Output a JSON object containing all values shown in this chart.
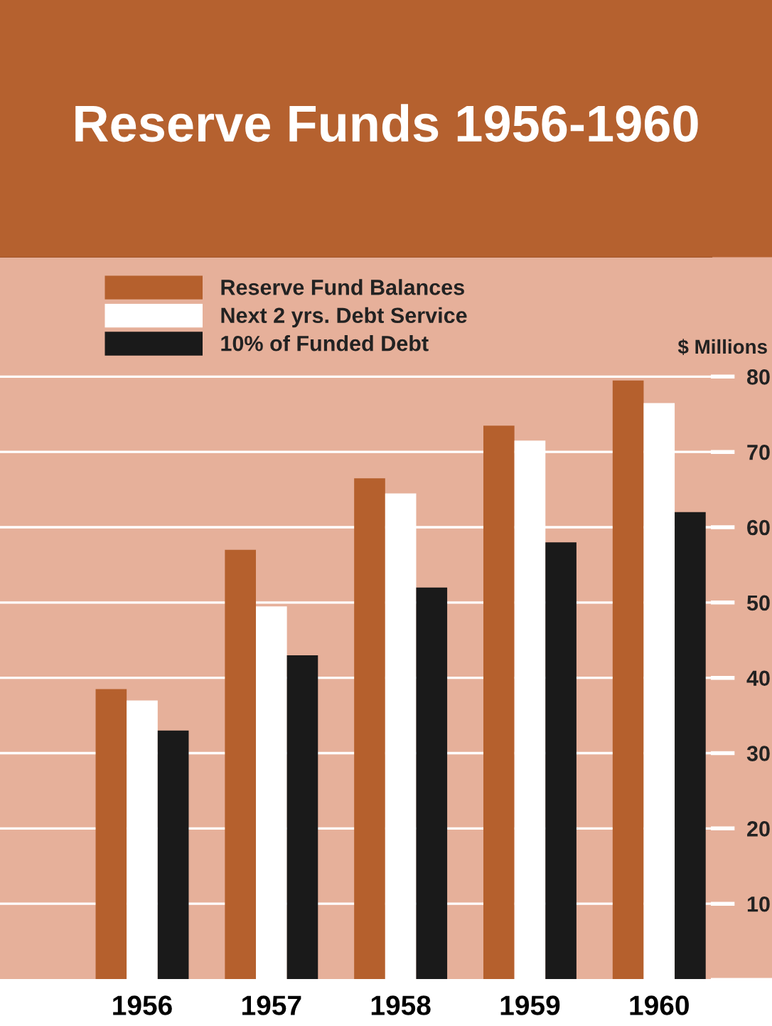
{
  "chart_data": {
    "type": "bar",
    "title": "Reserve Funds 1956-1960",
    "ylabel": "$ Millions",
    "categories": [
      "1956",
      "1957",
      "1958",
      "1959",
      "1960"
    ],
    "series": [
      {
        "name": "Reserve Fund Balances",
        "color": "#b5602d",
        "values": [
          38.5,
          57,
          66.5,
          73.5,
          79.5
        ]
      },
      {
        "name": "Next 2 yrs. Debt Service",
        "color": "#ffffff",
        "values": [
          37,
          49.5,
          64.5,
          71.5,
          76.5
        ]
      },
      {
        "name": "10% of Funded Debt",
        "color": "#1a1a1a",
        "values": [
          33,
          43,
          52,
          58,
          62
        ]
      }
    ],
    "ylim": [
      0,
      96
    ],
    "yticks": [
      10,
      20,
      30,
      40,
      50,
      60,
      70,
      80
    ],
    "grid": "y",
    "legend": "top left"
  }
}
